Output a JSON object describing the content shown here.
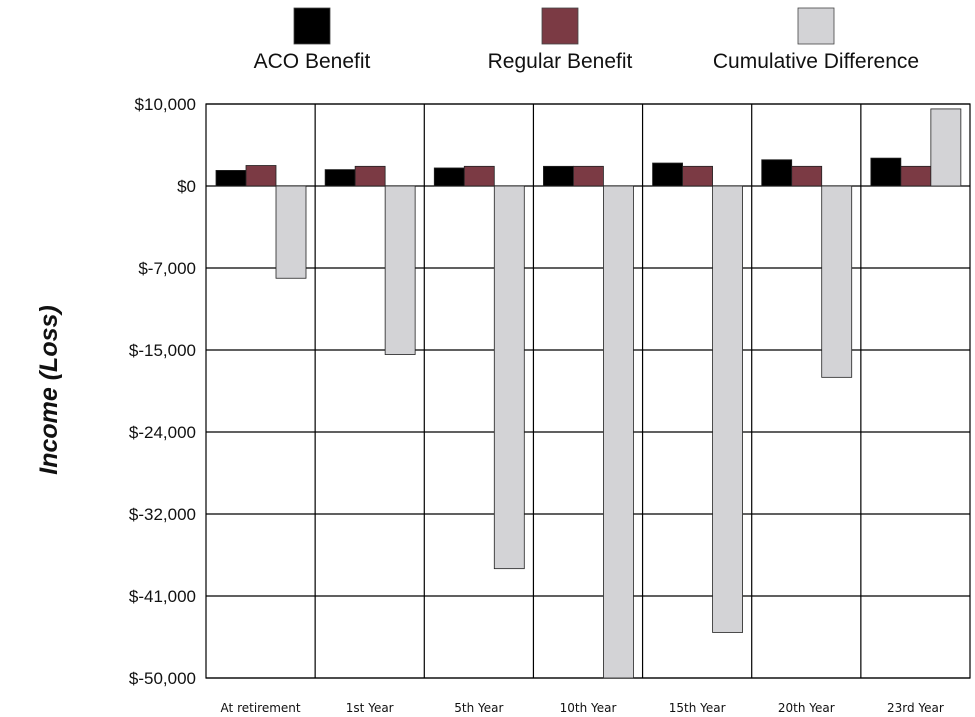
{
  "chart_data": {
    "type": "bar",
    "title": "",
    "xlabel": "",
    "ylabel": "Income (Loss)",
    "ylim": [
      -50000,
      10000
    ],
    "yticks": [
      {
        "value": 10000,
        "label": "$10,000"
      },
      {
        "value": 0,
        "label": "$0"
      },
      {
        "value": -7000,
        "label": "$-7,000"
      },
      {
        "value": -15000,
        "label": "$-15,000"
      },
      {
        "value": -24000,
        "label": "$-24,000"
      },
      {
        "value": -32000,
        "label": "$-32,000"
      },
      {
        "value": -41000,
        "label": "$-41,000"
      },
      {
        "value": -50000,
        "label": "$-50,000"
      }
    ],
    "grid": true,
    "legend_position": "top",
    "categories": [
      "At retirement",
      "1st Year",
      "5th Year",
      "10th Year",
      "15th Year",
      "20th Year",
      "23rd Year"
    ],
    "series": [
      {
        "name": "ACO Benefit",
        "color": "#000000",
        "values": [
          1900,
          2000,
          2200,
          2400,
          2800,
          3200,
          3400
        ]
      },
      {
        "name": "Regular Benefit",
        "color": "#7b3a44",
        "values": [
          2500,
          2400,
          2400,
          2400,
          2400,
          2400,
          2400
        ]
      },
      {
        "name": "Cumulative Difference",
        "color": "#d3d3d6",
        "values": [
          -8000,
          -15500,
          -38000,
          -51000,
          -45000,
          -18000,
          9400
        ]
      }
    ]
  }
}
